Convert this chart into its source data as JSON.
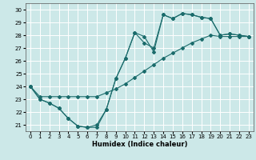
{
  "xlabel": "Humidex (Indice chaleur)",
  "bg_color": "#cce8e8",
  "grid_color": "#ffffff",
  "line_color": "#1a6b6b",
  "xlim": [
    -0.5,
    23.5
  ],
  "ylim": [
    20.5,
    30.5
  ],
  "xticks": [
    0,
    1,
    2,
    3,
    4,
    5,
    6,
    7,
    8,
    9,
    10,
    11,
    12,
    13,
    14,
    15,
    16,
    17,
    18,
    19,
    20,
    21,
    22,
    23
  ],
  "yticks": [
    21,
    22,
    23,
    24,
    25,
    26,
    27,
    28,
    29,
    30
  ],
  "line1": [
    24,
    23.0,
    22.7,
    22.3,
    21.5,
    20.9,
    20.8,
    20.8,
    22.2,
    24.6,
    26.2,
    28.2,
    27.9,
    26.7,
    29.6,
    29.3,
    29.7,
    29.6,
    29.4,
    29.3,
    28.0,
    28.1,
    28.0,
    27.9
  ],
  "line2": [
    24,
    23.0,
    22.7,
    22.3,
    21.5,
    20.9,
    20.8,
    21.0,
    22.2,
    24.6,
    26.2,
    28.2,
    27.4,
    27.0,
    29.6,
    29.3,
    29.7,
    29.6,
    29.4,
    29.3,
    28.0,
    28.1,
    28.0,
    27.9
  ],
  "line3": [
    24,
    23.2,
    23.2,
    23.2,
    23.2,
    23.2,
    23.2,
    23.2,
    23.5,
    23.8,
    24.2,
    24.7,
    25.2,
    25.7,
    26.2,
    26.6,
    27.0,
    27.4,
    27.7,
    28.0,
    27.9,
    27.9,
    27.9,
    27.9
  ]
}
